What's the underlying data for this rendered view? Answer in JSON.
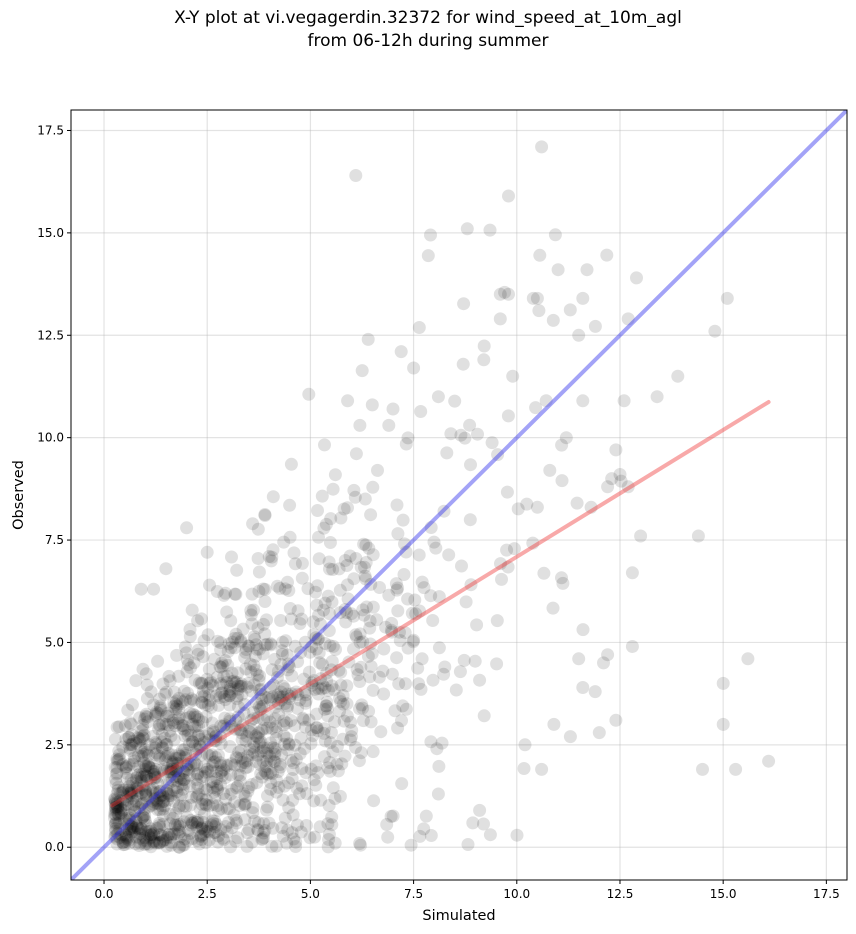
{
  "chart_data": {
    "type": "scatter",
    "title_line1": "X-Y plot at vi.vegagerdin.32372 for wind_speed_at_10m_agl",
    "title_line2": "from 06-12h during summer",
    "xlabel": "Simulated",
    "ylabel": "Observed",
    "xlim": [
      -0.8,
      18.0
    ],
    "ylim": [
      -0.8,
      18.0
    ],
    "xticks": [
      0.0,
      2.5,
      5.0,
      7.5,
      10.0,
      12.5,
      15.0,
      17.5
    ],
    "yticks": [
      0.0,
      2.5,
      5.0,
      7.5,
      10.0,
      12.5,
      15.0,
      17.5
    ],
    "xtick_labels": [
      "0.0",
      "2.5",
      "5.0",
      "7.5",
      "10.0",
      "12.5",
      "15.0",
      "17.5"
    ],
    "ytick_labels": [
      "0.0",
      "2.5",
      "5.0",
      "7.5",
      "10.0",
      "12.5",
      "15.0",
      "17.5"
    ],
    "grid": true,
    "point_color": "#000000",
    "point_alpha": 0.12,
    "identity_line": {
      "x": [
        -0.8,
        18.0
      ],
      "y": [
        -0.8,
        18.0
      ],
      "color": "#3333ee",
      "alpha": 0.45
    },
    "regression_line": {
      "x": [
        0.2,
        16.1
      ],
      "y": [
        1.02,
        10.87
      ],
      "color": "#ee3333",
      "alpha": 0.42
    },
    "outlier_points": [
      [
        6.1,
        16.4
      ],
      [
        10.6,
        17.1
      ],
      [
        8.8,
        15.1
      ],
      [
        9.8,
        15.9
      ],
      [
        9.6,
        13.5
      ],
      [
        9.8,
        13.5
      ],
      [
        10.4,
        13.4
      ],
      [
        10.5,
        13.4
      ],
      [
        11.0,
        14.1
      ],
      [
        11.7,
        14.1
      ],
      [
        12.9,
        13.9
      ],
      [
        11.6,
        13.4
      ],
      [
        15.1,
        13.4
      ],
      [
        14.8,
        12.6
      ],
      [
        13.9,
        11.5
      ],
      [
        12.7,
        12.9
      ],
      [
        11.5,
        12.5
      ],
      [
        9.6,
        12.9
      ],
      [
        6.4,
        12.4
      ],
      [
        7.2,
        12.1
      ],
      [
        5.9,
        10.9
      ],
      [
        6.2,
        10.3
      ],
      [
        6.9,
        10.3
      ],
      [
        7.0,
        10.7
      ],
      [
        6.5,
        10.8
      ],
      [
        7.5,
        11.7
      ],
      [
        8.1,
        11.0
      ],
      [
        9.2,
        11.9
      ],
      [
        9.9,
        11.5
      ],
      [
        15.0,
        4.0
      ],
      [
        15.0,
        3.0
      ],
      [
        15.6,
        4.6
      ],
      [
        14.5,
        1.9
      ],
      [
        15.3,
        1.9
      ],
      [
        16.1,
        2.1
      ],
      [
        14.4,
        7.6
      ],
      [
        13.0,
        7.6
      ],
      [
        12.8,
        4.9
      ],
      [
        12.8,
        6.7
      ],
      [
        12.4,
        3.1
      ],
      [
        12.0,
        2.8
      ],
      [
        11.3,
        2.7
      ],
      [
        10.6,
        1.9
      ],
      [
        10.2,
        2.5
      ],
      [
        9.1,
        0.9
      ],
      [
        8.1,
        1.3
      ],
      [
        5.6,
        0.1
      ],
      [
        2.0,
        7.8
      ],
      [
        1.5,
        6.8
      ],
      [
        0.9,
        6.3
      ],
      [
        1.2,
        6.3
      ],
      [
        3.6,
        7.9
      ],
      [
        3.9,
        8.1
      ],
      [
        2.5,
        7.2
      ],
      [
        11.5,
        4.6
      ],
      [
        12.1,
        4.5
      ],
      [
        12.2,
        4.7
      ],
      [
        11.9,
        3.8
      ],
      [
        11.6,
        3.9
      ],
      [
        10.9,
        3.0
      ],
      [
        13.4,
        11.0
      ],
      [
        12.6,
        10.9
      ],
      [
        12.3,
        9.0
      ],
      [
        12.4,
        9.7
      ],
      [
        11.6,
        10.9
      ],
      [
        11.2,
        10.0
      ],
      [
        10.8,
        9.2
      ],
      [
        10.5,
        8.3
      ],
      [
        11.8,
        8.3
      ],
      [
        12.2,
        8.8
      ],
      [
        12.7,
        8.8
      ],
      [
        12.5,
        9.1
      ]
    ]
  }
}
